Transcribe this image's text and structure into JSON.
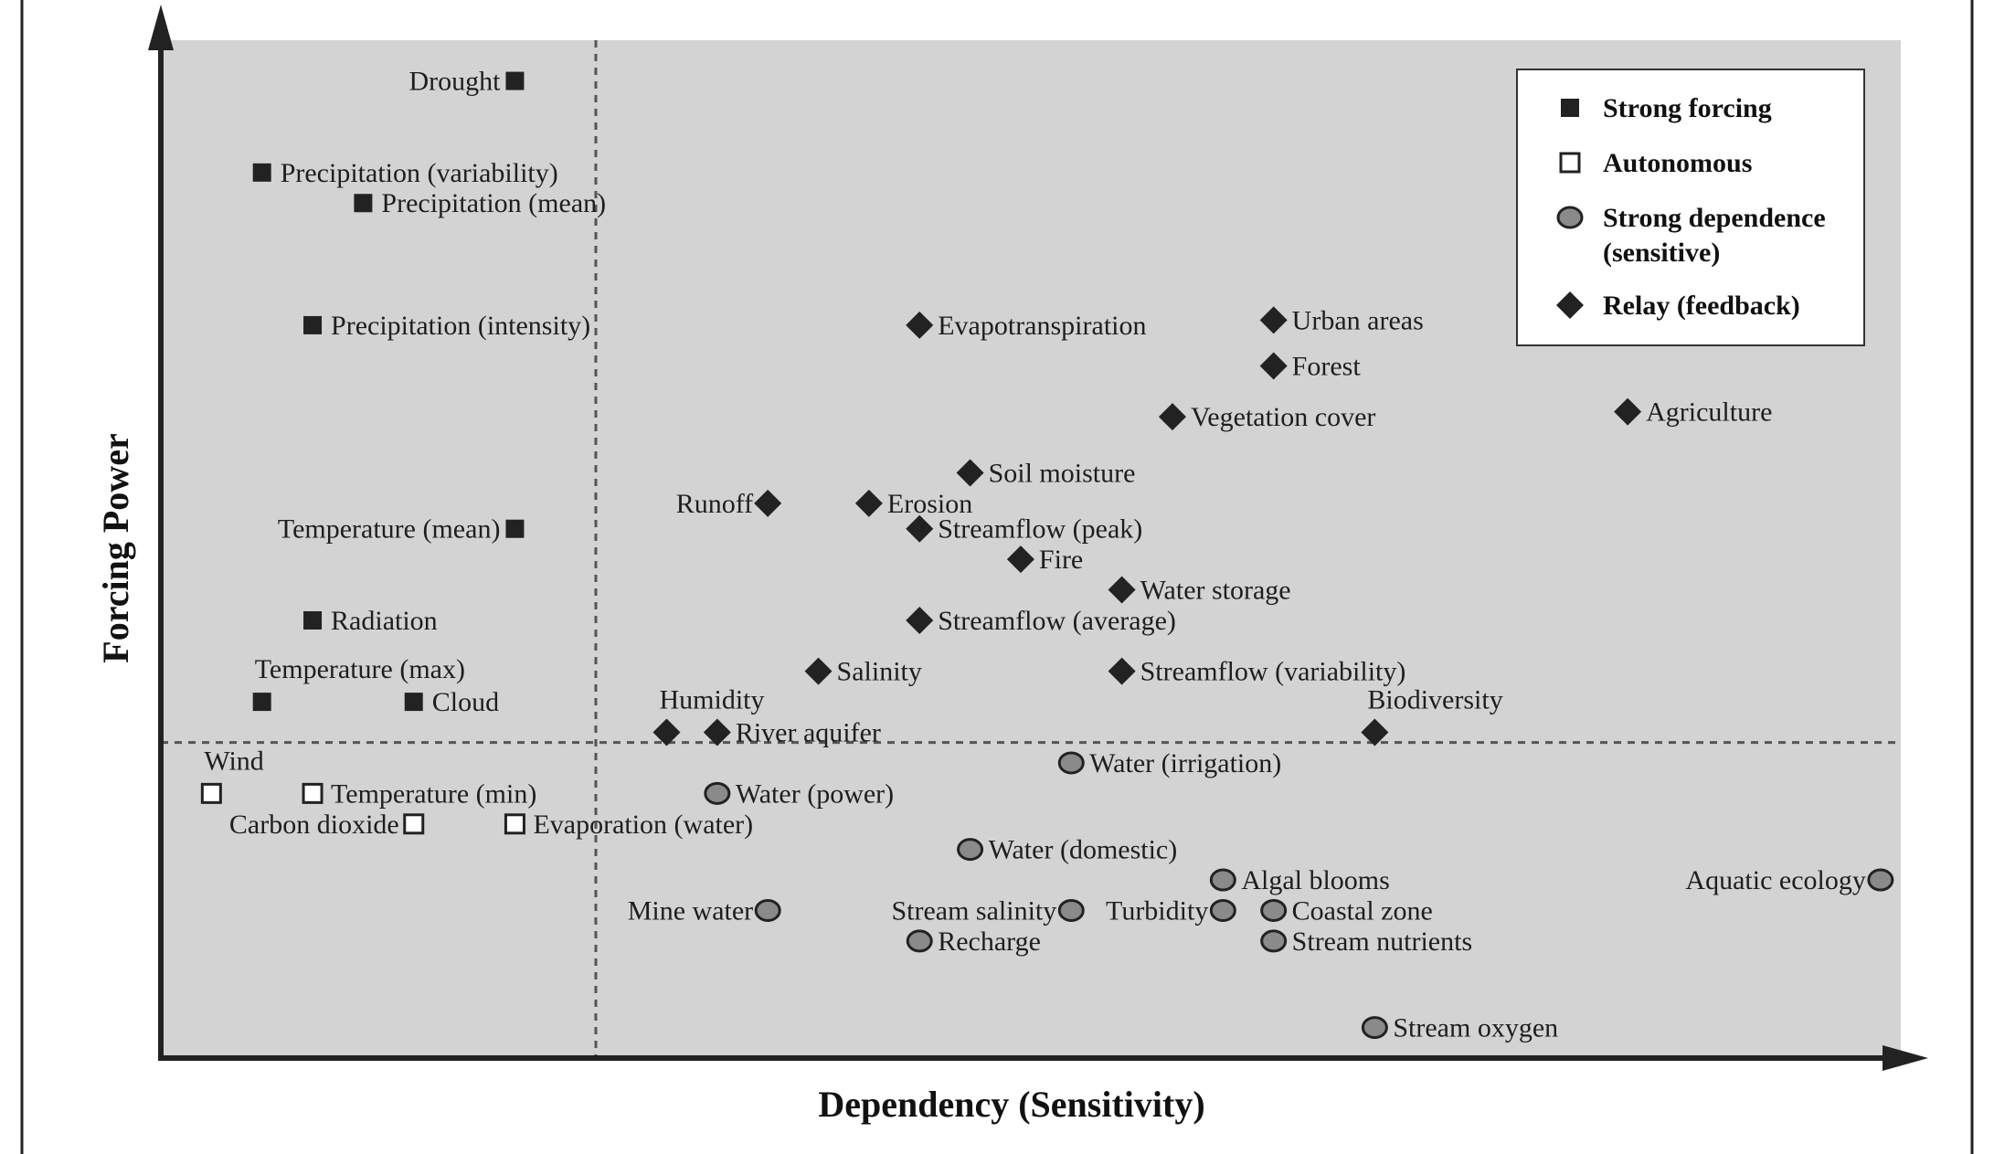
{
  "chart_data": {
    "type": "scatter",
    "xlabel": "Dependency (Sensitivity)",
    "ylabel": "Forcing Power",
    "xlim": [
      0,
      17.2
    ],
    "ylim": [
      0,
      10
    ],
    "grid": false,
    "legend_position": "top-right",
    "thresholds": {
      "x": 4.3,
      "y": 3.1
    },
    "colors": {
      "plot_background": "#d3d3d3",
      "strong_forcing": "#222222",
      "autonomous": "#ffffff",
      "strong_dependence": "#8a8a8a",
      "relay": "#222222"
    },
    "legend": [
      {
        "key": "strong_forcing",
        "marker": "square-filled",
        "lines": [
          "Strong forcing"
        ]
      },
      {
        "key": "autonomous",
        "marker": "square-open",
        "lines": [
          "Autonomous"
        ]
      },
      {
        "key": "strong_dependence",
        "marker": "circle-gray",
        "lines": [
          "Strong dependence",
          "(sensitive)"
        ]
      },
      {
        "key": "relay",
        "marker": "diamond",
        "lines": [
          "Relay (feedback)"
        ]
      }
    ],
    "series": [
      {
        "name": "Strong forcing",
        "marker": "square-filled",
        "points": [
          {
            "label": "Drought",
            "x": 3.5,
            "y": 9.6,
            "anchor": "left"
          },
          {
            "label": "Precipitation (variability)",
            "x": 1.0,
            "y": 8.7,
            "anchor": "right"
          },
          {
            "label": "Precipitation (mean)",
            "x": 2.0,
            "y": 8.4,
            "anchor": "right"
          },
          {
            "label": "Precipitation (intensity)",
            "x": 1.5,
            "y": 7.2,
            "anchor": "right"
          },
          {
            "label": "Temperature (mean)",
            "x": 3.5,
            "y": 5.2,
            "anchor": "left"
          },
          {
            "label": "Radiation",
            "x": 1.5,
            "y": 4.3,
            "anchor": "right"
          },
          {
            "label": "Temperature (max)",
            "x": 1.0,
            "y": 3.5,
            "anchor": "above-right"
          },
          {
            "label": "Cloud",
            "x": 2.5,
            "y": 3.5,
            "anchor": "right"
          }
        ]
      },
      {
        "name": "Autonomous",
        "marker": "square-open",
        "points": [
          {
            "label": "Wind",
            "x": 0.5,
            "y": 2.6,
            "anchor": "above-right"
          },
          {
            "label": "Temperature (min)",
            "x": 1.5,
            "y": 2.6,
            "anchor": "right"
          },
          {
            "label": "Carbon dioxide",
            "x": 2.5,
            "y": 2.3,
            "anchor": "left"
          },
          {
            "label": "Evaporation (water)",
            "x": 3.5,
            "y": 2.3,
            "anchor": "right"
          }
        ]
      },
      {
        "name": "Strong dependence (sensitive)",
        "marker": "circle-gray",
        "points": [
          {
            "label": "Water (irrigation)",
            "x": 9.0,
            "y": 2.9,
            "anchor": "right"
          },
          {
            "label": "Water (power)",
            "x": 5.5,
            "y": 2.6,
            "anchor": "right"
          },
          {
            "label": "Water (domestic)",
            "x": 8.0,
            "y": 2.05,
            "anchor": "right"
          },
          {
            "label": "Algal blooms",
            "x": 10.5,
            "y": 1.75,
            "anchor": "right"
          },
          {
            "label": "Aquatic ecology",
            "x": 17.0,
            "y": 1.75,
            "anchor": "left"
          },
          {
            "label": "Mine water",
            "x": 6.0,
            "y": 1.45,
            "anchor": "left"
          },
          {
            "label": "Stream salinity",
            "x": 9.0,
            "y": 1.45,
            "anchor": "left"
          },
          {
            "label": "Turbidity",
            "x": 10.5,
            "y": 1.45,
            "anchor": "left"
          },
          {
            "label": "Coastal zone",
            "x": 11.0,
            "y": 1.45,
            "anchor": "right"
          },
          {
            "label": "Recharge",
            "x": 7.5,
            "y": 1.15,
            "anchor": "right"
          },
          {
            "label": "Stream nutrients",
            "x": 11.0,
            "y": 1.15,
            "anchor": "right"
          },
          {
            "label": "Stream oxygen",
            "x": 12.0,
            "y": 0.3,
            "anchor": "right"
          }
        ]
      },
      {
        "name": "Relay (feedback)",
        "marker": "diamond",
        "points": [
          {
            "label": "Evapotranspiration",
            "x": 7.5,
            "y": 7.2,
            "anchor": "right"
          },
          {
            "label": "Urban areas",
            "x": 11.0,
            "y": 7.25,
            "anchor": "right"
          },
          {
            "label": "Forest",
            "x": 11.0,
            "y": 6.8,
            "anchor": "right"
          },
          {
            "label": "Vegetation cover",
            "x": 10.0,
            "y": 6.3,
            "anchor": "right"
          },
          {
            "label": "Agriculture",
            "x": 14.5,
            "y": 6.35,
            "anchor": "right"
          },
          {
            "label": "Soil moisture",
            "x": 8.0,
            "y": 5.75,
            "anchor": "right"
          },
          {
            "label": "Runoff",
            "x": 6.0,
            "y": 5.45,
            "anchor": "left"
          },
          {
            "label": "Erosion",
            "x": 7.0,
            "y": 5.45,
            "anchor": "right"
          },
          {
            "label": "Streamflow (peak)",
            "x": 7.5,
            "y": 5.2,
            "anchor": "right"
          },
          {
            "label": "Fire",
            "x": 8.5,
            "y": 4.9,
            "anchor": "right"
          },
          {
            "label": "Water storage",
            "x": 9.5,
            "y": 4.6,
            "anchor": "right"
          },
          {
            "label": "Streamflow (average)",
            "x": 7.5,
            "y": 4.3,
            "anchor": "right"
          },
          {
            "label": "Salinity",
            "x": 6.5,
            "y": 3.8,
            "anchor": "right"
          },
          {
            "label": "Streamflow (variability)",
            "x": 9.5,
            "y": 3.8,
            "anchor": "right"
          },
          {
            "label": "Humidity",
            "x": 5.0,
            "y": 3.2,
            "anchor": "above-right"
          },
          {
            "label": "River aquifer",
            "x": 5.5,
            "y": 3.2,
            "anchor": "right"
          },
          {
            "label": "Biodiversity",
            "x": 12.0,
            "y": 3.2,
            "anchor": "above-right"
          }
        ]
      }
    ]
  }
}
